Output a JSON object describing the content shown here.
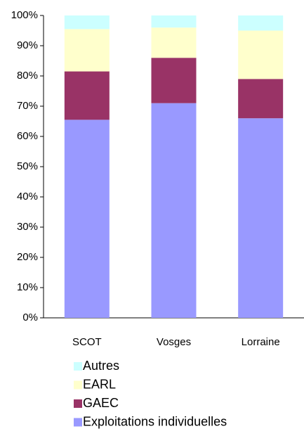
{
  "chart_data": {
    "type": "stacked_bar",
    "categories": [
      "SCOT",
      "Vosges",
      "Lorraine"
    ],
    "series": [
      {
        "name": "Exploitations individuelles",
        "color": "#9999ff",
        "values": [
          65.5,
          71,
          66
        ]
      },
      {
        "name": "GAEC",
        "color": "#993366",
        "values": [
          16,
          15,
          13
        ]
      },
      {
        "name": "EARL",
        "color": "#ffffcc",
        "values": [
          14,
          10,
          16
        ]
      },
      {
        "name": "Autres",
        "color": "#ccffff",
        "values": [
          4.5,
          4,
          5
        ]
      }
    ],
    "ylim": [
      0,
      100
    ],
    "yticks": [
      {
        "value": 0,
        "label": "0%"
      },
      {
        "value": 10,
        "label": "10%"
      },
      {
        "value": 20,
        "label": "20%"
      },
      {
        "value": 30,
        "label": "30%"
      },
      {
        "value": 40,
        "label": "40%"
      },
      {
        "value": 50,
        "label": "50%"
      },
      {
        "value": 60,
        "label": "60%"
      },
      {
        "value": 70,
        "label": "70%"
      },
      {
        "value": 80,
        "label": "80%"
      },
      {
        "value": 90,
        "label": "90%"
      },
      {
        "value": 100,
        "label": "100%"
      }
    ],
    "grid": false
  }
}
